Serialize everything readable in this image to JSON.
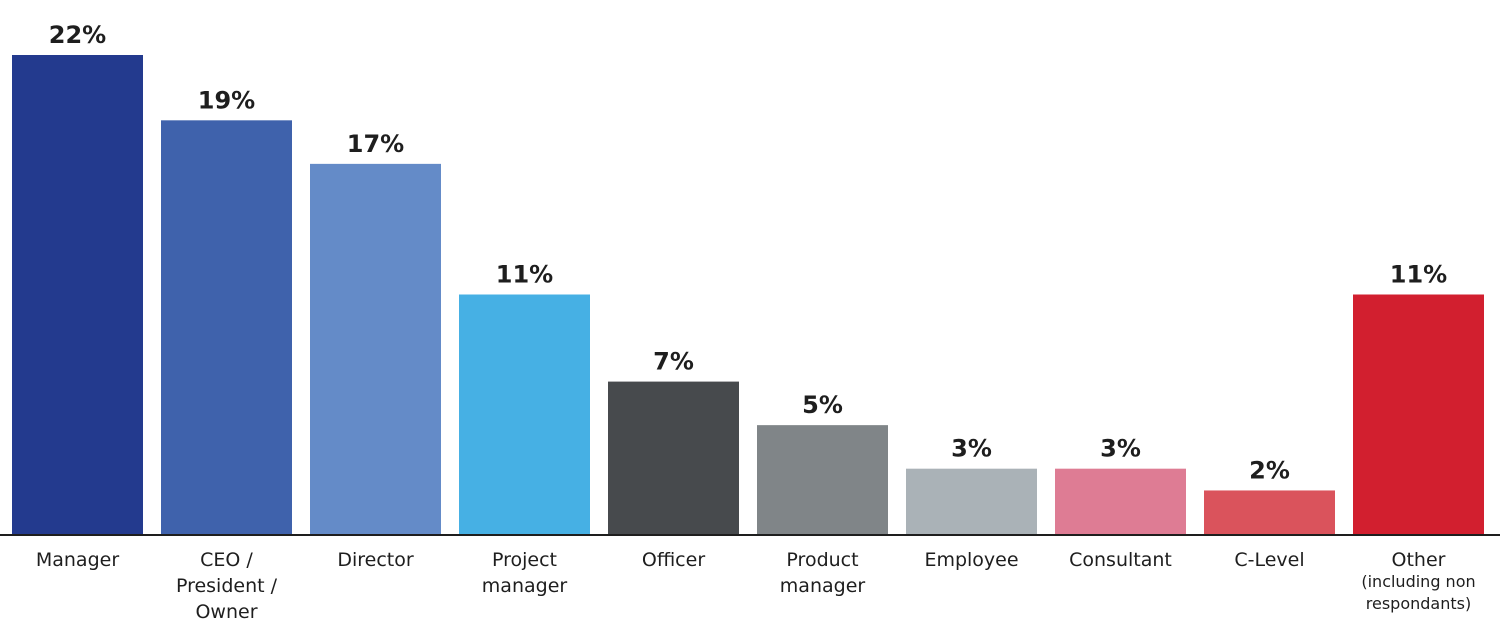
{
  "chart_data": {
    "type": "bar",
    "categories": [
      "Manager",
      "CEO / President / Owner",
      "Director",
      "Project manager",
      "Officer",
      "Product manager",
      "Employee",
      "Consultant",
      "C-Level",
      "Other (including non respondants)"
    ],
    "category_label_lines": [
      [
        "Manager"
      ],
      [
        "CEO /",
        "President /",
        "Owner"
      ],
      [
        "Director"
      ],
      [
        "Project",
        "manager"
      ],
      [
        "Officer"
      ],
      [
        "Product",
        "manager"
      ],
      [
        "Employee"
      ],
      [
        "Consultant"
      ],
      [
        "C-Level"
      ],
      [
        "Other",
        "(including non",
        "respondants)"
      ]
    ],
    "values": [
      22,
      19,
      17,
      11,
      7,
      5,
      3,
      3,
      2,
      11
    ],
    "value_labels": [
      "22%",
      "19%",
      "17%",
      "11%",
      "7%",
      "5%",
      "3%",
      "3%",
      "2%",
      "11%"
    ],
    "colors": [
      "#233a8e",
      "#3f62ac",
      "#648bc8",
      "#46b0e4",
      "#474a4d",
      "#808588",
      "#aab2b7",
      "#de7c94",
      "#da535c",
      "#d21f2f"
    ],
    "ylim": [
      0,
      22
    ],
    "grid": false,
    "legend": "none"
  }
}
